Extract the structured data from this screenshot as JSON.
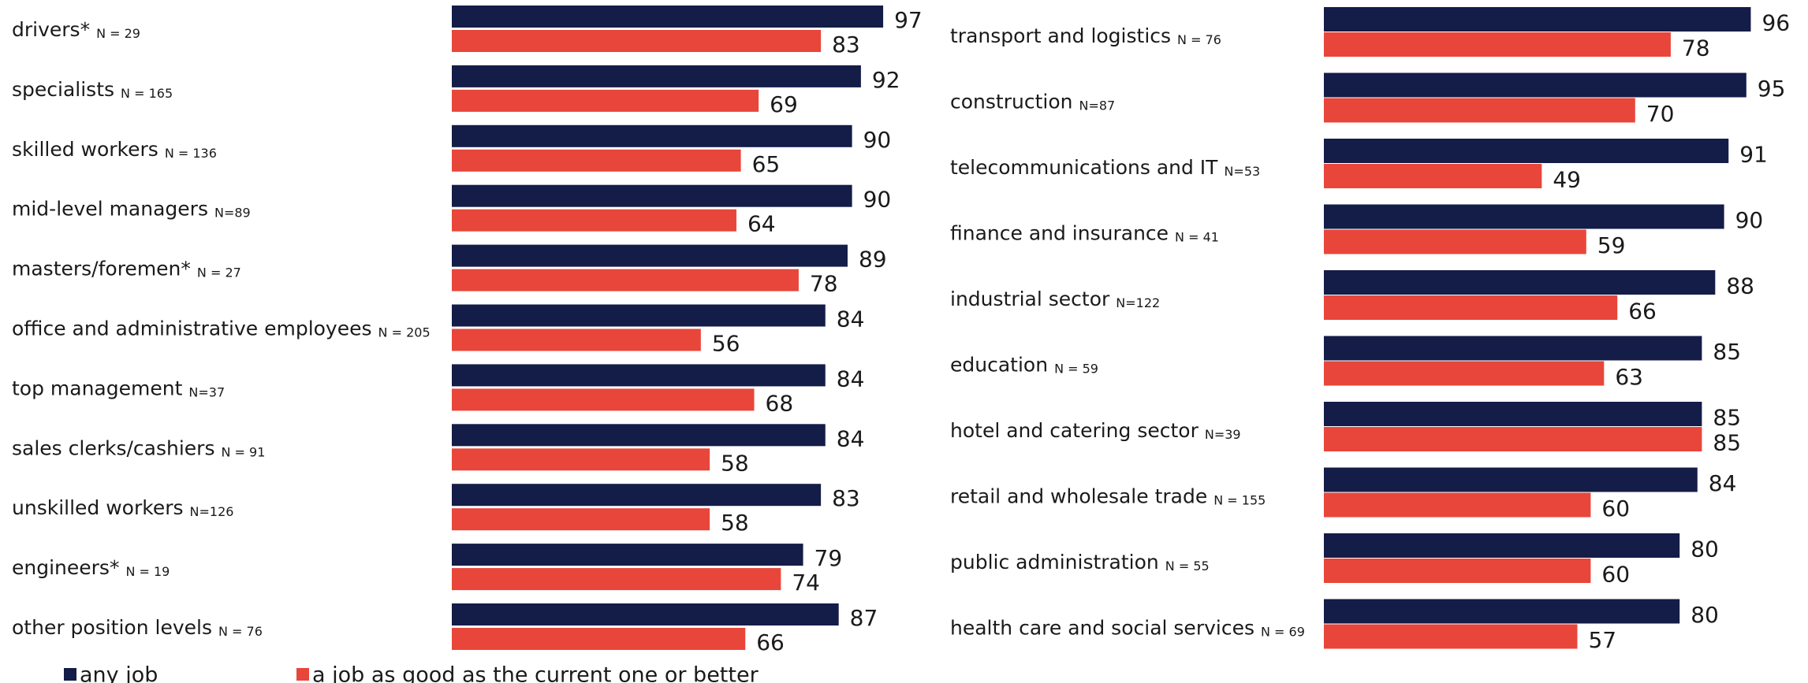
{
  "chart_data": [
    {
      "type": "bar",
      "orientation": "horizontal",
      "xlim": [
        0,
        100
      ],
      "categories": [
        "drivers*",
        "specialists",
        "skilled workers",
        "mid-level managers",
        "masters/foremen*",
        "office and administrative employees",
        "top management",
        "sales clerks/cashiers",
        "unskilled workers",
        "engineers*",
        "other position levels"
      ],
      "n_labels": [
        "N = 29",
        "N = 165",
        "N = 136",
        "N=89",
        "N = 27",
        "N = 205",
        "N=37",
        "N = 91",
        "N=126",
        "N = 19",
        "N = 76"
      ],
      "series": [
        {
          "name": "any job",
          "color": "#141c48",
          "values": [
            97,
            92,
            90,
            90,
            89,
            84,
            84,
            84,
            83,
            79,
            87
          ]
        },
        {
          "name": "a job as good as the current one or better",
          "color": "#e8463a",
          "values": [
            83,
            69,
            65,
            64,
            78,
            56,
            68,
            58,
            58,
            74,
            66
          ]
        }
      ]
    },
    {
      "type": "bar",
      "orientation": "horizontal",
      "xlim": [
        0,
        100
      ],
      "categories": [
        "transport and logistics",
        "construction",
        "telecommunications and IT",
        "finance and insurance",
        "industrial sector",
        "education",
        "hotel and catering sector",
        "retail and wholesale trade",
        "public administration",
        "health care and social services"
      ],
      "n_labels": [
        "N = 76",
        "N=87",
        "N=53",
        "N = 41",
        "N=122",
        "N = 59",
        "N=39",
        "N = 155",
        "N = 55",
        "N = 69"
      ],
      "series": [
        {
          "color": "#141c48",
          "values": [
            96,
            95,
            91,
            90,
            88,
            85,
            85,
            84,
            80,
            80
          ]
        },
        {
          "color": "#e8463a",
          "values": [
            78,
            70,
            49,
            59,
            66,
            63,
            85,
            60,
            60,
            57
          ]
        }
      ]
    }
  ]
}
